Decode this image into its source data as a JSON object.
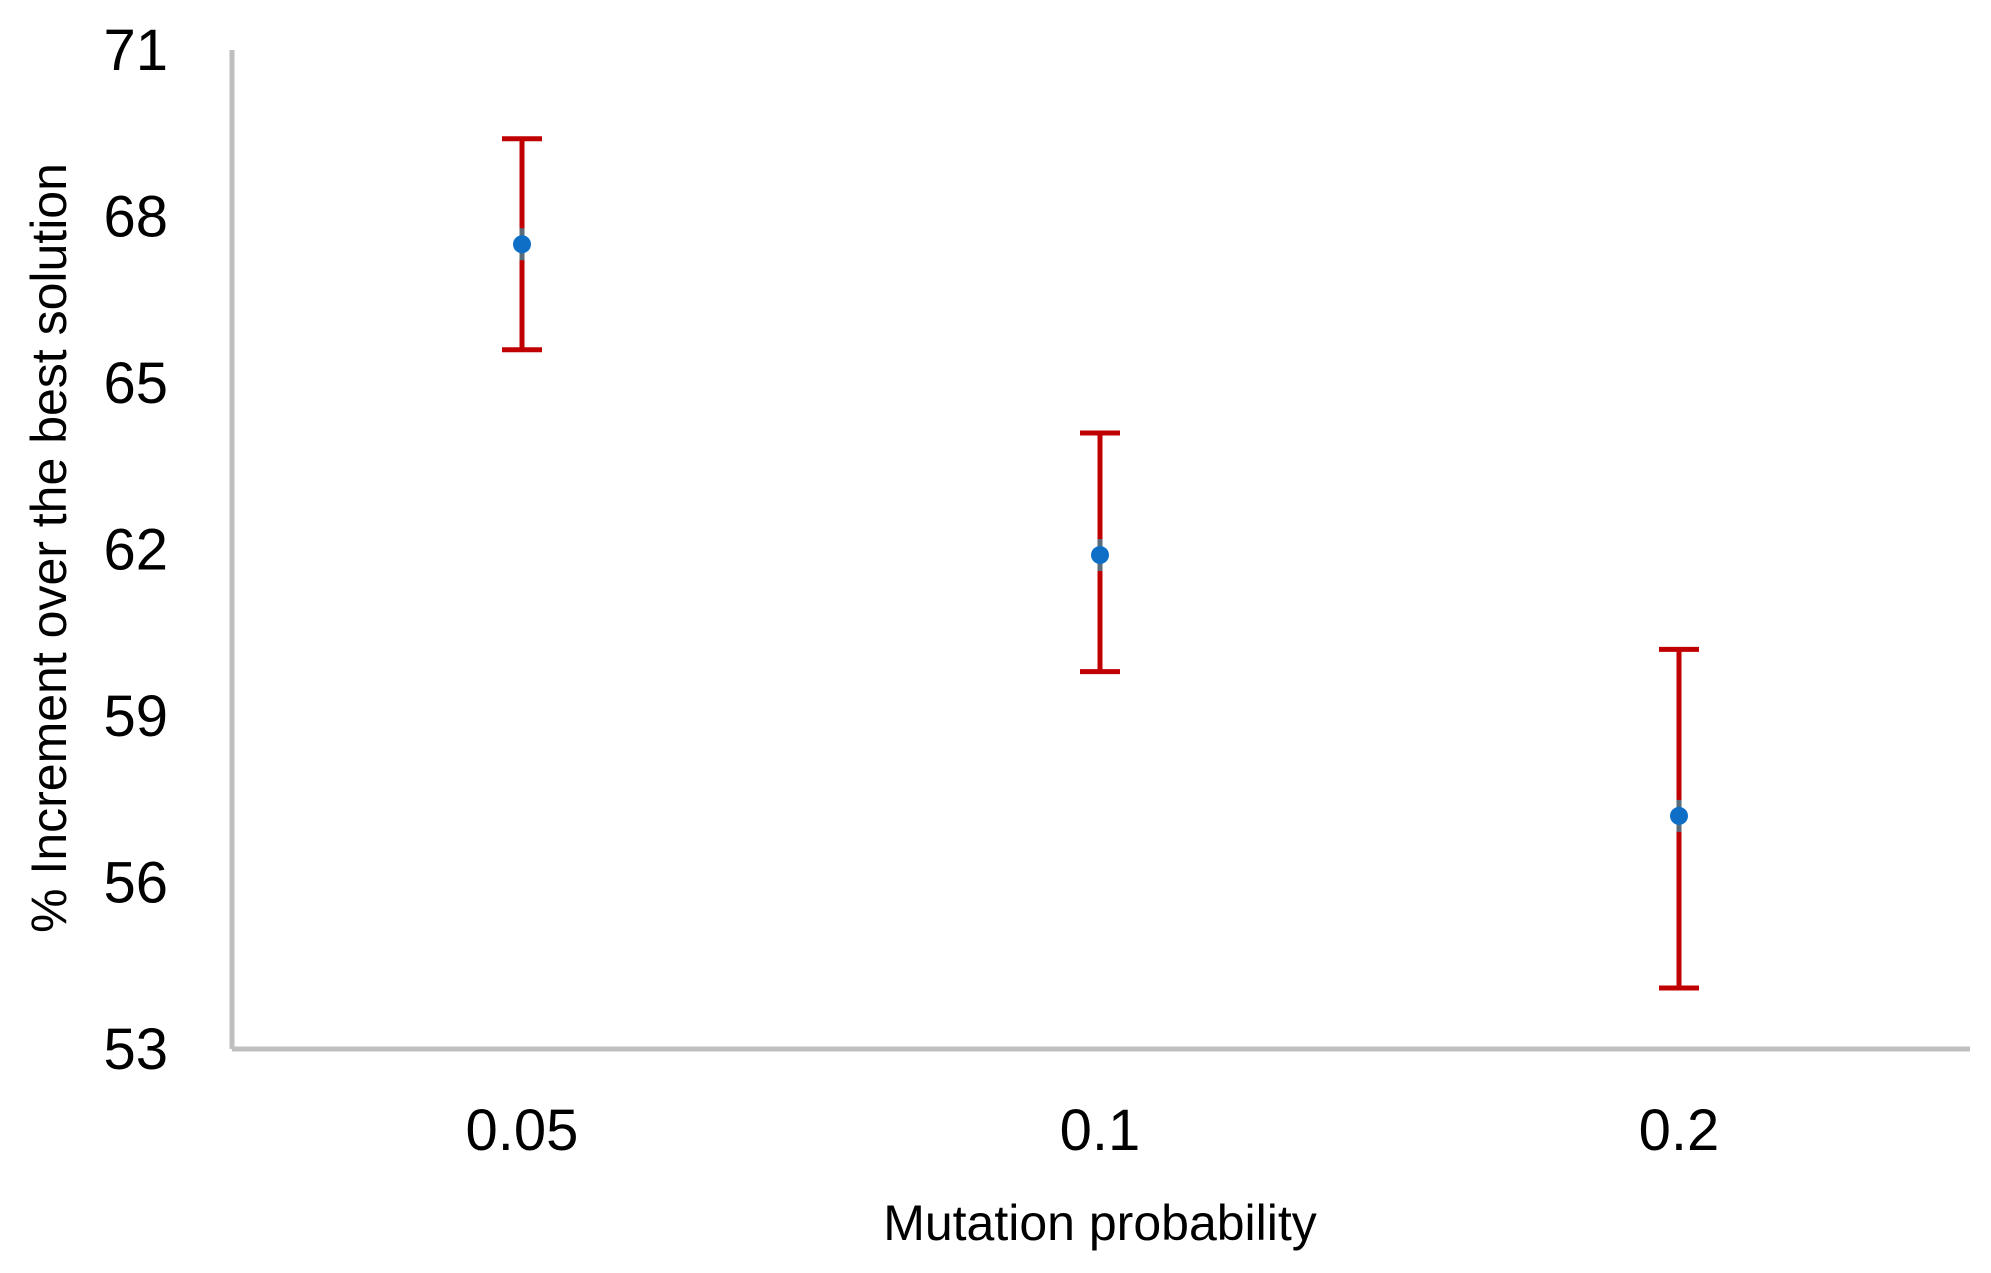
{
  "chart_data": {
    "type": "scatter",
    "title": "",
    "xlabel": "Mutation probability",
    "ylabel": "% Increment over the best solution",
    "categories": [
      "0.05",
      "0.1",
      "0.2"
    ],
    "values": [
      67.5,
      61.9,
      57.2
    ],
    "error_low": [
      65.6,
      59.8,
      54.1
    ],
    "error_high": [
      69.4,
      64.1,
      60.2
    ],
    "ylim": [
      53,
      71
    ],
    "yticks": [
      "53",
      "56",
      "59",
      "62",
      "65",
      "68",
      "71"
    ],
    "grid": false,
    "legend": "none",
    "colors": {
      "point": "#0f6fc6",
      "error_bar": "#c00000",
      "axis": "#bfbfbf"
    }
  }
}
